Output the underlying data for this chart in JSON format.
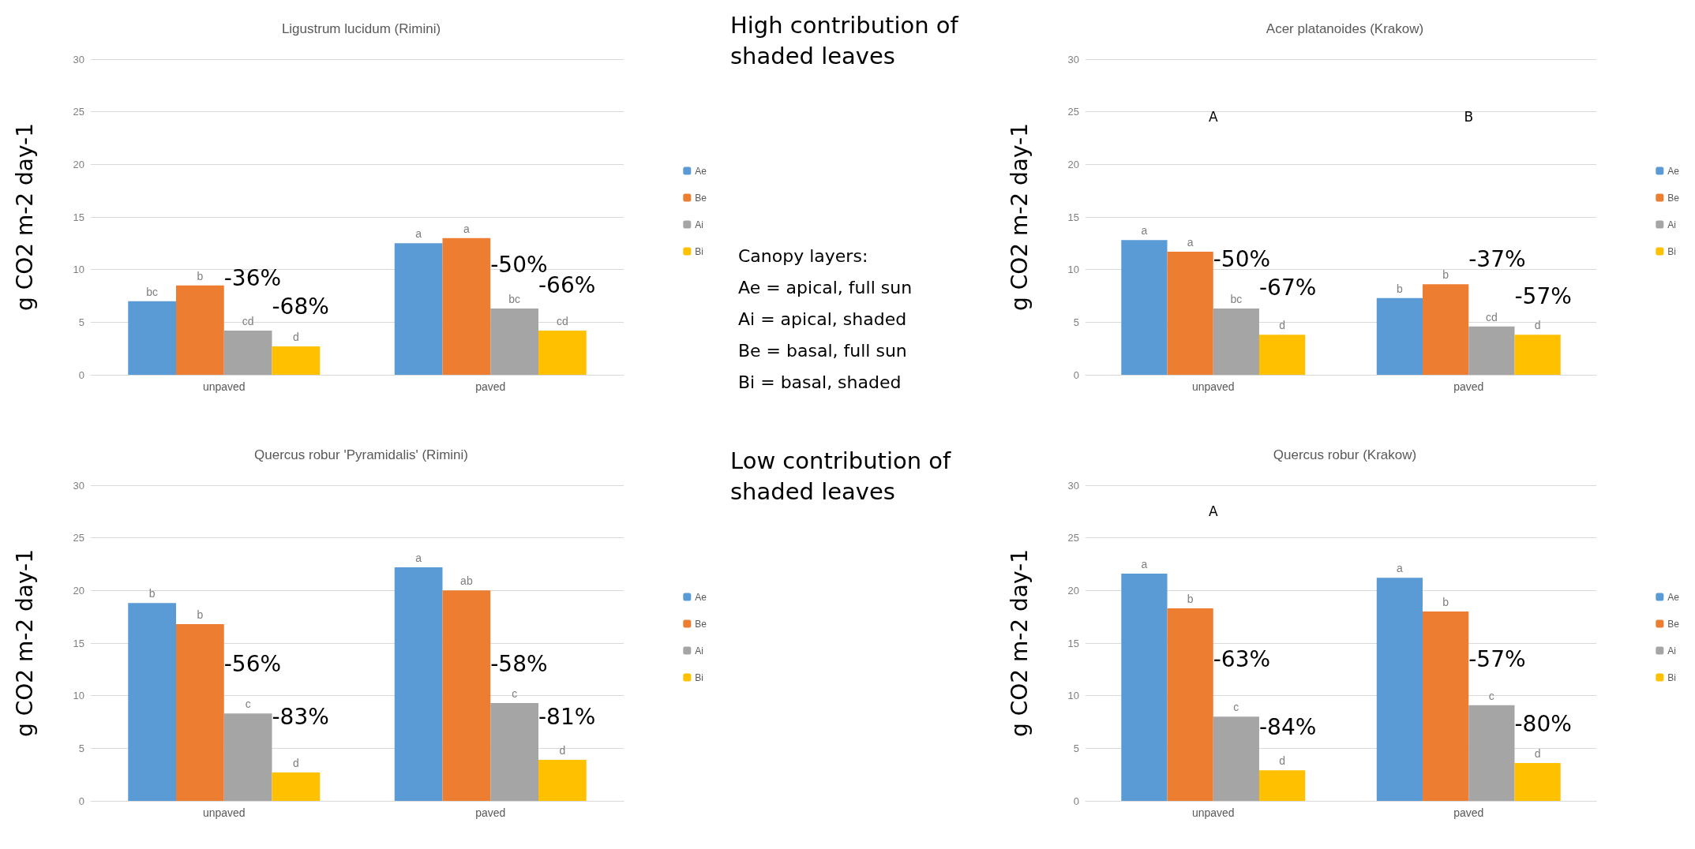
{
  "chart_data": [
    {
      "type": "bar",
      "title": "Ligustrum lucidum (Rimini)",
      "ylabel": "g CO2 m-2 day-1",
      "categories": [
        "unpaved",
        "paved"
      ],
      "ylim": [
        0,
        30
      ],
      "yticks": [
        0,
        5,
        10,
        15,
        20,
        25,
        30
      ],
      "grid": "y",
      "legend": "right",
      "series": [
        {
          "name": "Ae",
          "color": "#5b9bd5",
          "values": [
            7.0,
            12.5
          ],
          "value_labels": [
            "bc",
            "a"
          ]
        },
        {
          "name": "Be",
          "color": "#ed7d31",
          "values": [
            8.5,
            13.0
          ],
          "value_labels": [
            "b",
            "a"
          ]
        },
        {
          "name": "Ai",
          "color": "#a5a5a5",
          "values": [
            4.2,
            6.3
          ],
          "value_labels": [
            "cd",
            "bc"
          ]
        },
        {
          "name": "Bi",
          "color": "#ffc000",
          "values": [
            2.7,
            4.2
          ],
          "value_labels": [
            "d",
            "cd"
          ]
        }
      ],
      "annotations": [
        "-36%",
        "-68%",
        "-50%",
        "-66%"
      ]
    },
    {
      "type": "bar",
      "title": "Acer platanoides (Krakow)",
      "ylabel": "g CO2 m-2 day-1",
      "categories": [
        "unpaved",
        "paved"
      ],
      "ylim": [
        0,
        30
      ],
      "yticks": [
        0,
        5,
        10,
        15,
        20,
        25,
        30
      ],
      "grid": "y",
      "legend": "right",
      "series": [
        {
          "name": "Ae",
          "color": "#5b9bd5",
          "values": [
            12.8,
            7.3
          ],
          "value_labels": [
            "a",
            "b"
          ]
        },
        {
          "name": "Be",
          "color": "#ed7d31",
          "values": [
            11.7,
            8.6
          ],
          "value_labels": [
            "a",
            "b"
          ]
        },
        {
          "name": "Ai",
          "color": "#a5a5a5",
          "values": [
            6.3,
            4.6
          ],
          "value_labels": [
            "bc",
            "cd"
          ]
        },
        {
          "name": "Bi",
          "color": "#ffc000",
          "values": [
            3.8,
            3.8
          ],
          "value_labels": [
            "d",
            "d"
          ]
        }
      ],
      "annotations": [
        "A",
        "-50%",
        "-67%",
        "B",
        "-37%",
        "-57%"
      ]
    },
    {
      "type": "bar",
      "title": "Quercus robur 'Pyramidalis' (Rimini)",
      "ylabel": "g CO2 m-2 day-1",
      "categories": [
        "unpaved",
        "paved"
      ],
      "ylim": [
        0,
        30
      ],
      "yticks": [
        0,
        5,
        10,
        15,
        20,
        25,
        30
      ],
      "grid": "y",
      "legend": "right",
      "series": [
        {
          "name": "Ae",
          "color": "#5b9bd5",
          "values": [
            18.8,
            22.2
          ],
          "value_labels": [
            "b",
            "a"
          ]
        },
        {
          "name": "Be",
          "color": "#ed7d31",
          "values": [
            16.8,
            20.0
          ],
          "value_labels": [
            "b",
            "ab"
          ]
        },
        {
          "name": "Ai",
          "color": "#a5a5a5",
          "values": [
            8.3,
            9.3
          ],
          "value_labels": [
            "c",
            "c"
          ]
        },
        {
          "name": "Bi",
          "color": "#ffc000",
          "values": [
            2.7,
            3.9
          ],
          "value_labels": [
            "d",
            "d"
          ]
        }
      ],
      "annotations": [
        "-56%",
        "-83%",
        "-58%",
        "-81%"
      ]
    },
    {
      "type": "bar",
      "title": "Quercus robur (Krakow)",
      "ylabel": "g CO2 m-2 day-1",
      "categories": [
        "unpaved",
        "paved"
      ],
      "ylim": [
        0,
        30
      ],
      "yticks": [
        0,
        5,
        10,
        15,
        20,
        25,
        30
      ],
      "grid": "y",
      "legend": "right",
      "series": [
        {
          "name": "Ae",
          "color": "#5b9bd5",
          "values": [
            21.6,
            21.2
          ],
          "value_labels": [
            "a",
            "a"
          ]
        },
        {
          "name": "Be",
          "color": "#ed7d31",
          "values": [
            18.3,
            18.0
          ],
          "value_labels": [
            "b",
            "b"
          ]
        },
        {
          "name": "Ai",
          "color": "#a5a5a5",
          "values": [
            8.0,
            9.1
          ],
          "value_labels": [
            "c",
            "c"
          ]
        },
        {
          "name": "Bi",
          "color": "#ffc000",
          "values": [
            2.9,
            3.6
          ],
          "value_labels": [
            "d",
            "d"
          ]
        }
      ],
      "annotations": [
        "A",
        "-63%",
        "-84%",
        "-57%",
        "-80%"
      ]
    },
    {
      "type": "other",
      "annotations": [
        "High contribution of shaded leaves",
        "Canopy layers:",
        "Ae = apical, full sun",
        "Ai = apical, shaded",
        "Be = basal, full sun",
        "Bi = basal, shaded",
        "Low contribution of shaded leaves"
      ]
    }
  ]
}
